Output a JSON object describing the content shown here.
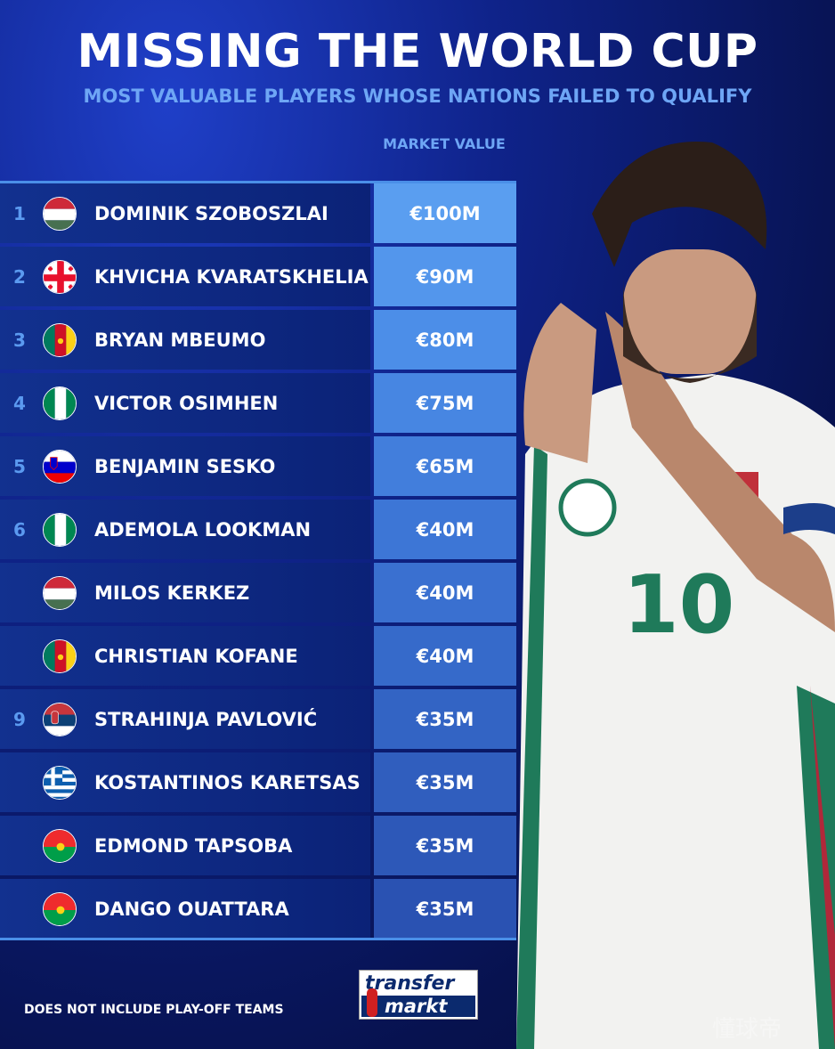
{
  "title": "MISSING THE WORLD CUP",
  "subtitle": "MOST VALUABLE PLAYERS WHOSE NATIONS FAILED TO QUALIFY",
  "column_header": "MARKET VALUE",
  "players": [
    {
      "rank": "1",
      "name": "DOMINIK SZOBOSZLAI",
      "country": "Hungary",
      "value": "€100M",
      "value_color": "#5a9ef0"
    },
    {
      "rank": "2",
      "name": "KHVICHA KVARATSKHELIA",
      "country": "Georgia",
      "value": "€90M",
      "value_color": "#5396ec"
    },
    {
      "rank": "3",
      "name": "BRYAN MBEUMO",
      "country": "Cameroon",
      "value": "€80M",
      "value_color": "#4c8ee8"
    },
    {
      "rank": "4",
      "name": "VICTOR OSIMHEN",
      "country": "Nigeria",
      "value": "€75M",
      "value_color": "#4786e2"
    },
    {
      "rank": "5",
      "name": "BENJAMIN SESKO",
      "country": "Slovenia",
      "value": "€65M",
      "value_color": "#427edc"
    },
    {
      "rank": "6",
      "name": "ADEMOLA LOOKMAN",
      "country": "Nigeria",
      "value": "€40M",
      "value_color": "#3d76d6"
    },
    {
      "rank": "",
      "name": "MILOS KERKEZ",
      "country": "Hungary",
      "value": "€40M",
      "value_color": "#3a70d0"
    },
    {
      "rank": "",
      "name": "CHRISTIAN KOFANE",
      "country": "Cameroon",
      "value": "€40M",
      "value_color": "#366aca"
    },
    {
      "rank": "9",
      "name": "STRAHINJA PAVLOVIĆ",
      "country": "Serbia",
      "value": "€35M",
      "value_color": "#3364c4"
    },
    {
      "rank": "",
      "name": "KOSTANTINOS KARETSAS",
      "country": "Greece",
      "value": "€35M",
      "value_color": "#305ebe"
    },
    {
      "rank": "",
      "name": "EDMOND TAPSOBA",
      "country": "Burkina Faso",
      "value": "€35M",
      "value_color": "#2d58b8"
    },
    {
      "rank": "",
      "name": "DANGO OUATTARA",
      "country": "Burkina Faso",
      "value": "€35M",
      "value_color": "#2a52b2"
    }
  ],
  "footer_note": "DOES NOT INCLUDE PLAY-OFF TEAMS",
  "logo": {
    "line1": "transfer",
    "line2": "markt"
  },
  "watermark": "懂球帝"
}
